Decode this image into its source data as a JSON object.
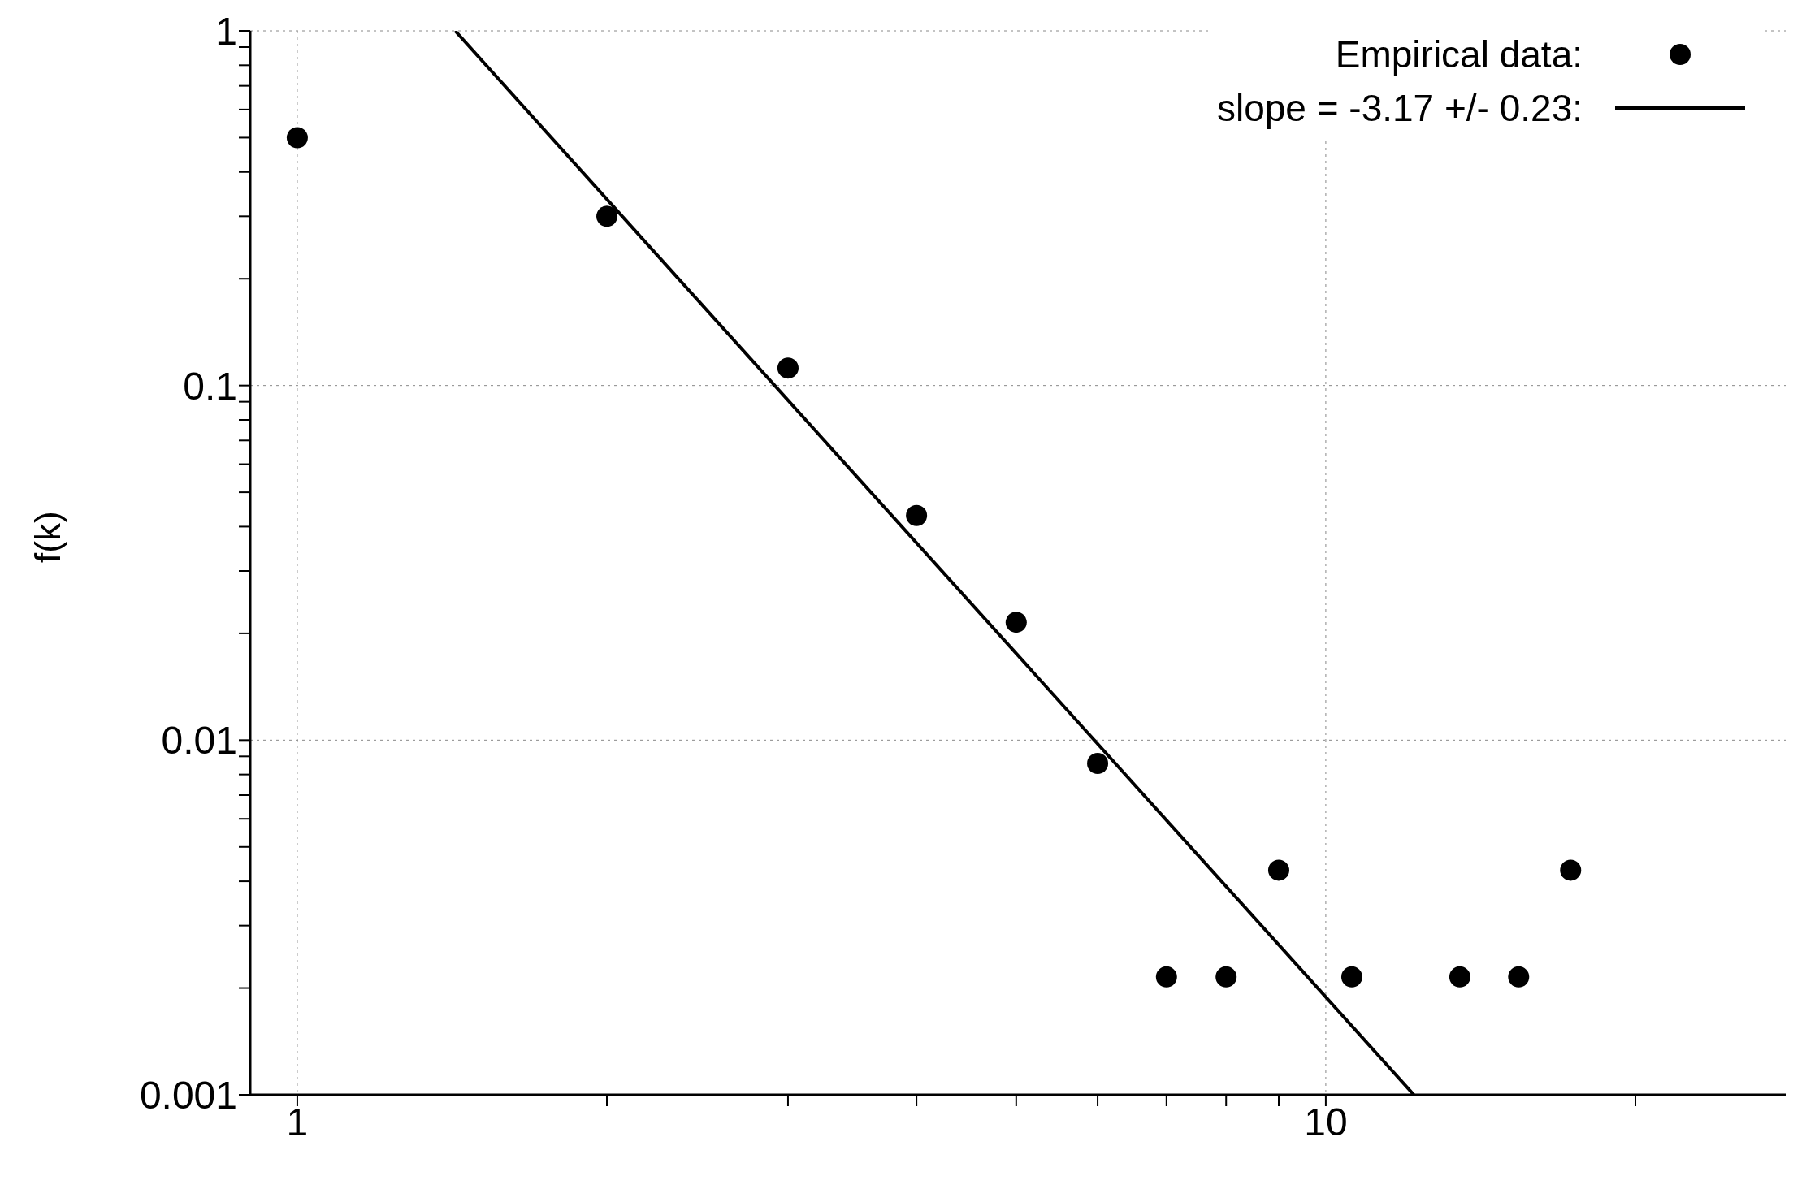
{
  "chart_data": {
    "type": "scatter",
    "ylabel": "f(k)",
    "log": "xy",
    "grid": true,
    "legend": "top right",
    "xlim": [
      0.9,
      28
    ],
    "xticks": [
      1,
      {
        "value": 2,
        "label": null
      },
      {
        "value": 3,
        "label": null
      },
      {
        "value": 4,
        "label": null
      },
      {
        "value": 5,
        "label": null
      },
      {
        "value": 6,
        "label": null
      },
      {
        "value": 7,
        "label": null
      },
      {
        "value": 8,
        "label": null
      },
      {
        "value": 9,
        "label": null
      },
      10,
      {
        "value": 20,
        "label": null
      }
    ],
    "ylim": [
      0.001,
      1
    ],
    "yticks": [
      0.001,
      {
        "value": 0.002,
        "label": null
      },
      {
        "value": 0.003,
        "label": null
      },
      {
        "value": 0.004,
        "label": null
      },
      {
        "value": 0.005,
        "label": null
      },
      {
        "value": 0.006,
        "label": null
      },
      {
        "value": 0.007,
        "label": null
      },
      {
        "value": 0.008,
        "label": null
      },
      {
        "value": 0.009,
        "label": null
      },
      0.01,
      {
        "value": 0.02,
        "label": null
      },
      {
        "value": 0.03,
        "label": null
      },
      {
        "value": 0.04,
        "label": null
      },
      {
        "value": 0.05,
        "label": null
      },
      {
        "value": 0.06,
        "label": null
      },
      {
        "value": 0.07,
        "label": null
      },
      {
        "value": 0.08,
        "label": null
      },
      {
        "value": 0.09,
        "label": null
      },
      0.1,
      {
        "value": 0.2,
        "label": null
      },
      {
        "value": 0.3,
        "label": null
      },
      {
        "value": 0.4,
        "label": null
      },
      {
        "value": 0.5,
        "label": null
      },
      {
        "value": 0.6,
        "label": null
      },
      {
        "value": 0.7,
        "label": null
      },
      {
        "value": 0.8,
        "label": null
      },
      {
        "value": 0.9,
        "label": null
      },
      1
    ],
    "series": [
      {
        "name": "Empirical data:",
        "marker": "circle",
        "color": "#000000",
        "x": [
          1,
          2,
          3,
          4,
          5,
          6,
          7,
          8,
          9,
          10.6,
          13.5,
          15.4,
          17.3
        ],
        "values": [
          0.5,
          0.3,
          0.112,
          0.043,
          0.0215,
          0.0086,
          0.00215,
          0.00215,
          0.0043,
          0.00215,
          0.00215,
          0.00215,
          0.0043
        ]
      },
      {
        "name": "slope = -3.17 +/- 0.23:",
        "type": "line",
        "color": "#000000",
        "line_style": "solid",
        "x": [
          1.424,
          12.18
        ],
        "values": [
          1,
          0.001
        ]
      }
    ]
  }
}
